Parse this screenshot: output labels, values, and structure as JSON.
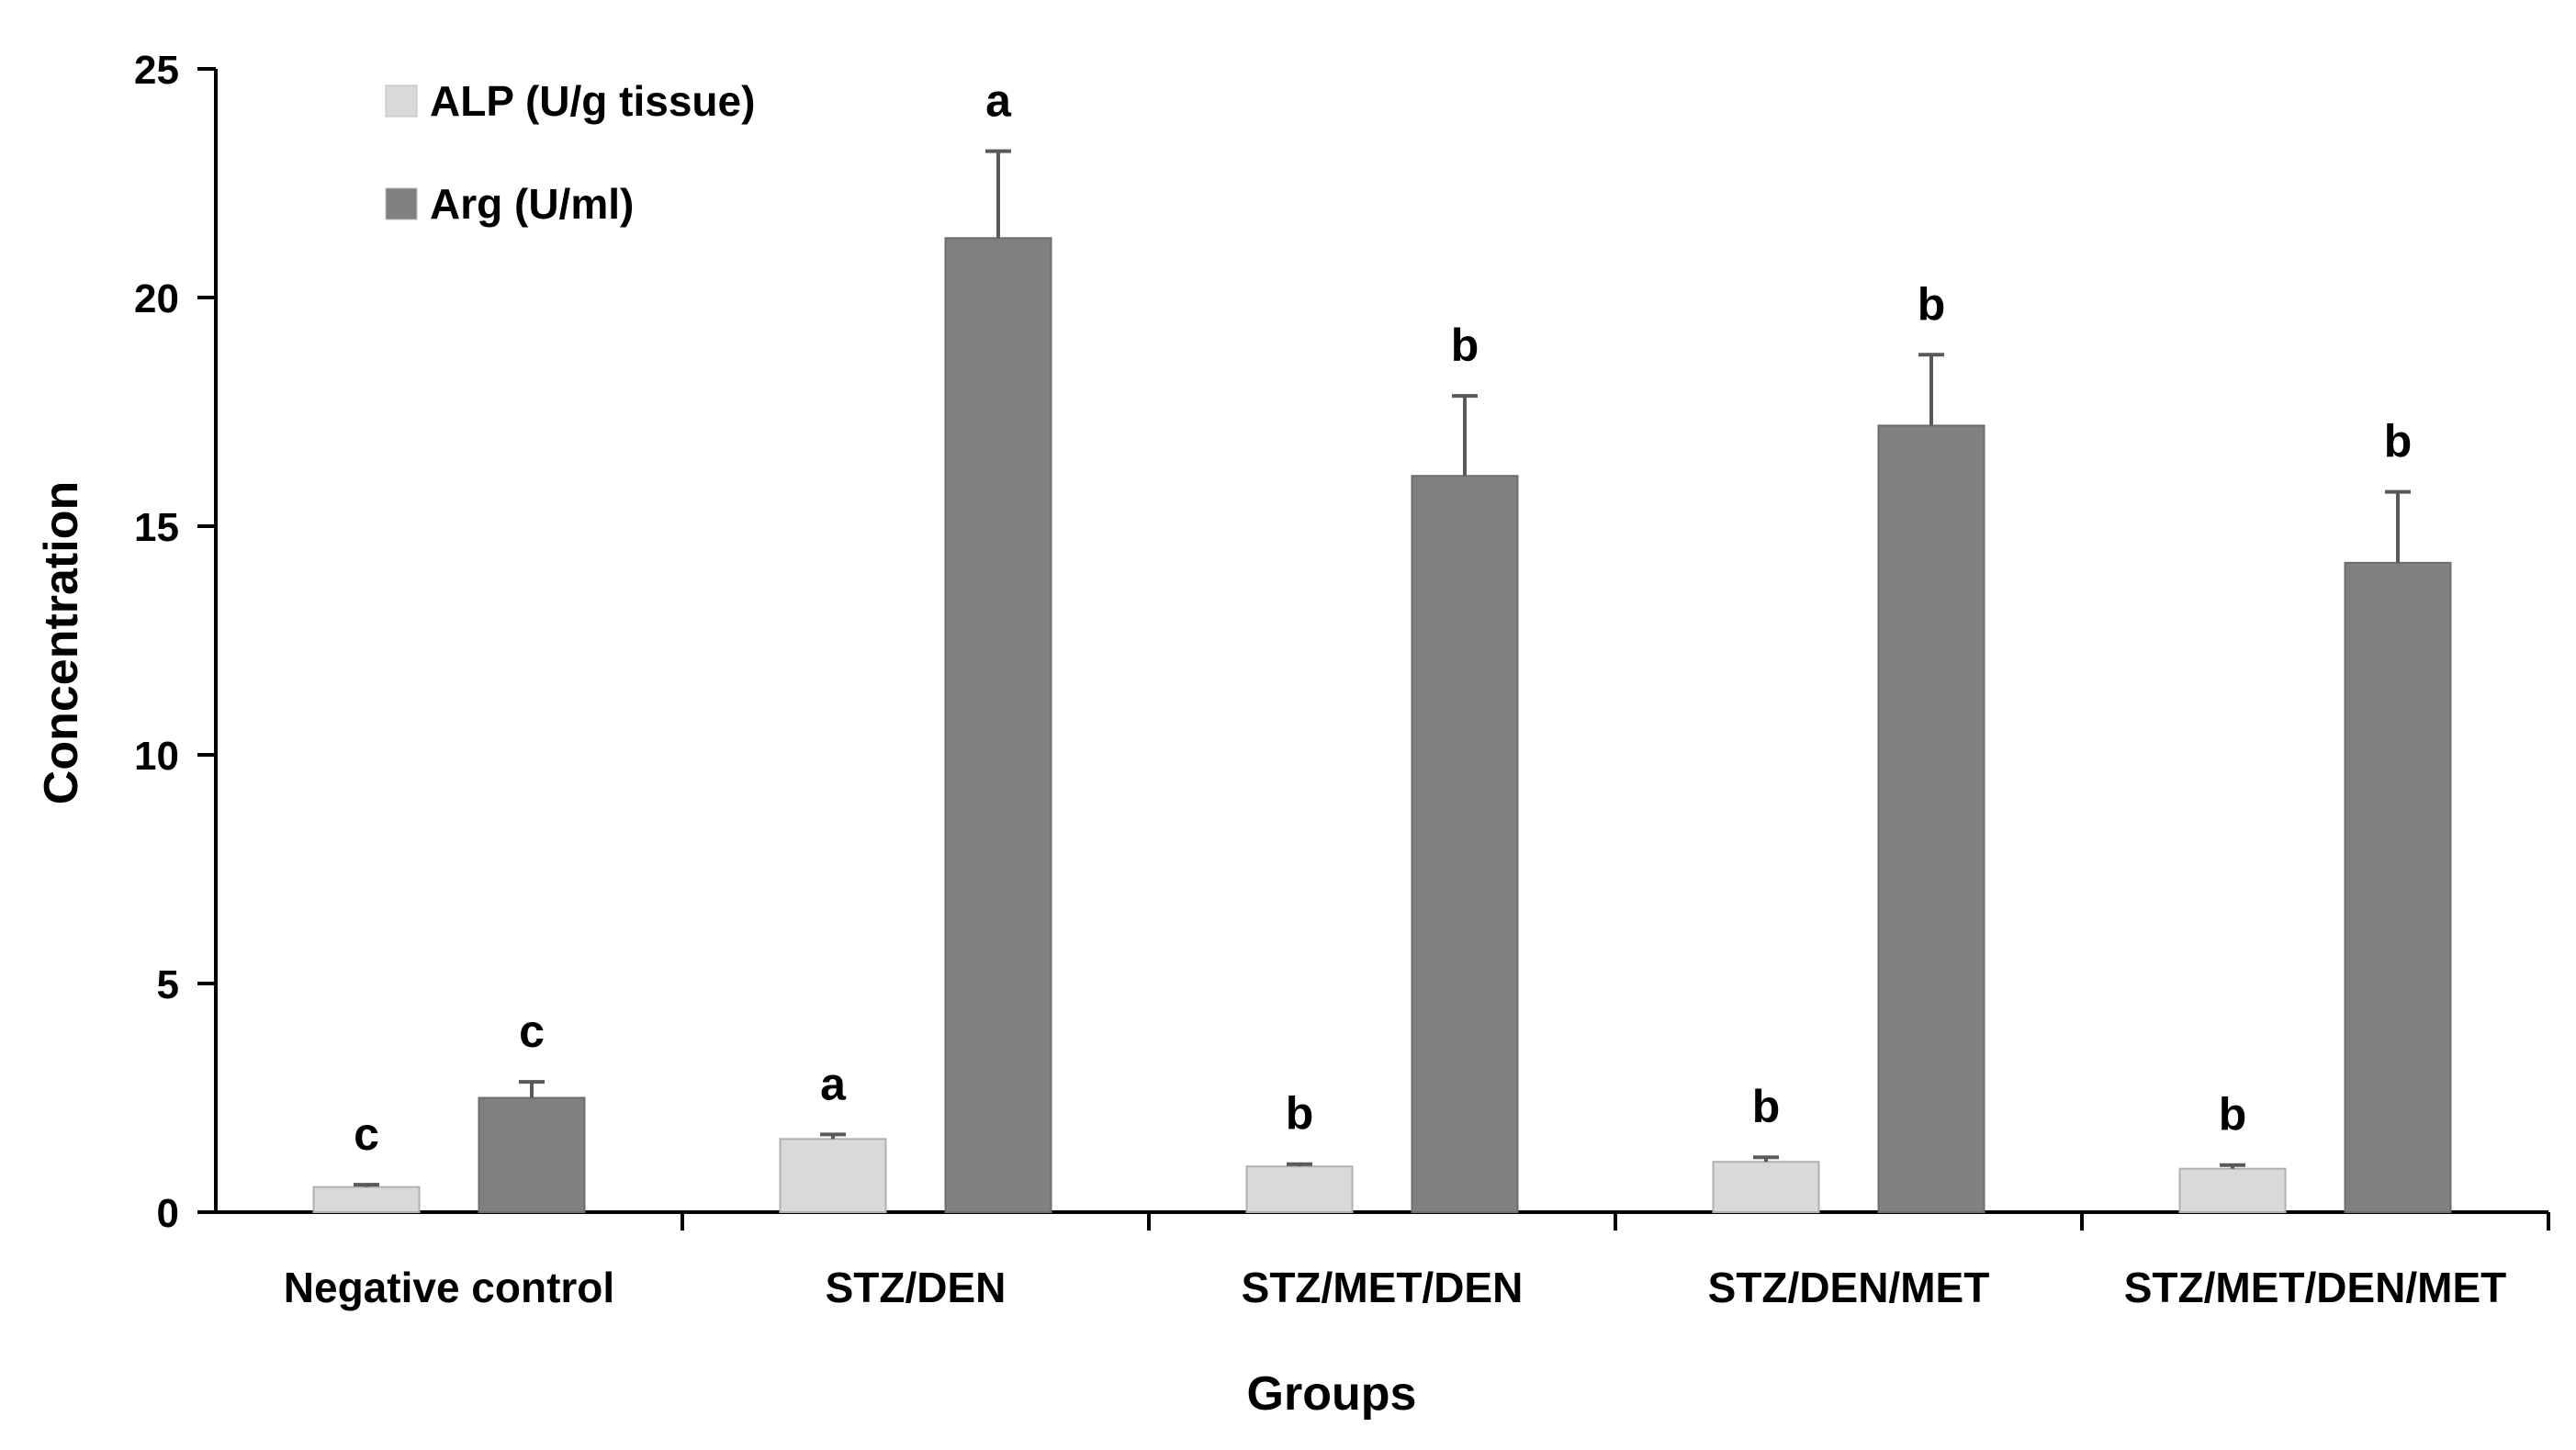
{
  "chart_data": {
    "type": "bar",
    "title": "",
    "xlabel": "Groups",
    "ylabel": "Concentration",
    "ylim": [
      0,
      25
    ],
    "yticks": [
      0,
      5,
      10,
      15,
      20,
      25
    ],
    "grid": false,
    "legend_position": "top-left",
    "categories": [
      "Negative control",
      "STZ/DEN",
      "STZ/MET/DEN",
      "STZ/DEN/MET",
      "STZ/MET/DEN/MET"
    ],
    "series": [
      {
        "name": "ALP (U/g tissue)",
        "color": "#d9d9d9",
        "values": [
          0.55,
          1.6,
          1.0,
          1.1,
          0.95
        ],
        "errors": [
          0.05,
          0.1,
          0.05,
          0.1,
          0.08
        ],
        "significance": [
          "c",
          "a",
          "b",
          "b",
          "b"
        ]
      },
      {
        "name": "Arg (U/ml)",
        "color": "#808080",
        "values": [
          2.5,
          21.3,
          16.1,
          17.2,
          14.2
        ],
        "errors": [
          0.35,
          1.9,
          1.75,
          1.55,
          1.55
        ],
        "significance": [
          "c",
          "a",
          "b",
          "b",
          "b"
        ]
      }
    ]
  }
}
